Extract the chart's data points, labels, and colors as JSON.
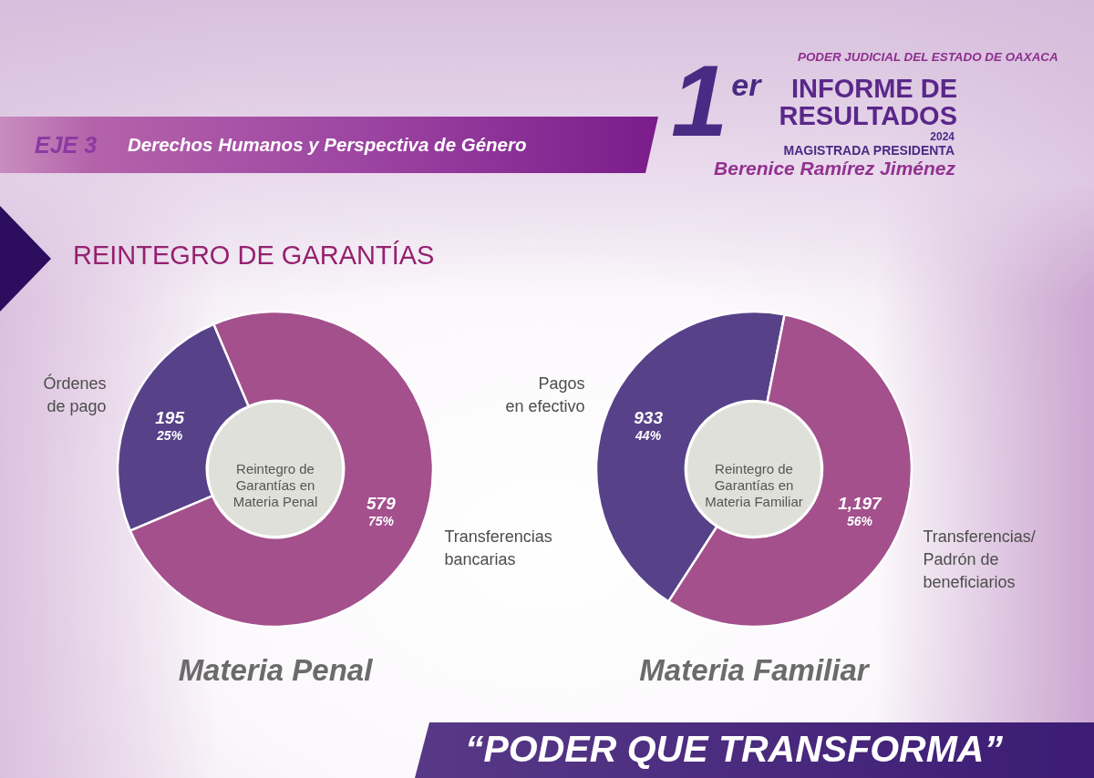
{
  "chart_data": [
    {
      "type": "other",
      "title": "REINTEGRO DE GARANTÍAS",
      "annotations": [
        "PODER JUDICIAL DEL ESTADO DE OAXACA",
        "1$^{er}$",
        "INFORME DE RESULTADOS",
        "2024",
        "MAGISTRADA PRESIDENTA",
        "Berenice Ramírez Jiménez",
        "EJE 3",
        "Derechos Humanos y Perspectiva de Género",
        "“PODER QUE TRANSFORMA”"
      ]
    },
    {
      "type": "donut",
      "title": "Materia Penal",
      "categories": [
        "Órdenes\nde pago",
        "Transferencias\nbancarias"
      ],
      "values": [
        25,
        75
      ],
      "colors": [
        "#574289",
        "#a3508d"
      ],
      "value_labels": [
        "195\n25%",
        "579\n75%"
      ],
      "annotations": [
        "Reintegro de\nGarantías en\nMateria Penal"
      ]
    },
    {
      "type": "donut",
      "title": "Materia Familiar",
      "categories": [
        "Pagos\nen efectivo",
        "Transferencias/\nPadrón de\nbeneficiarios"
      ],
      "values": [
        44,
        56
      ],
      "colors": [
        "#574289",
        "#a3508d"
      ],
      "value_labels": [
        "933\n44%",
        "1,197\n56%"
      ],
      "annotations": [
        "Reintegro de\nGarantías en\nMateria Familiar"
      ]
    }
  ]
}
